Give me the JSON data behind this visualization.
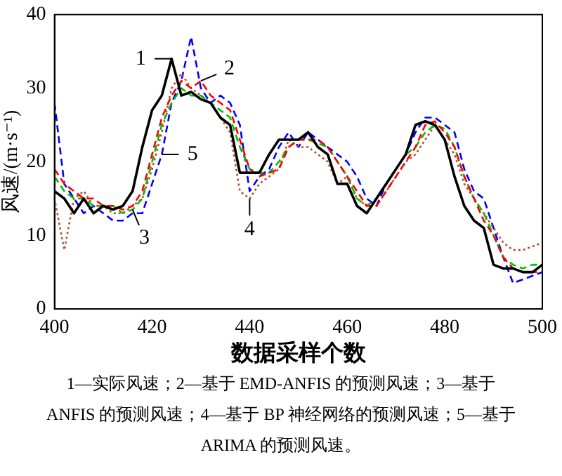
{
  "chart_data": {
    "type": "line",
    "xlabel": "数据采样个数",
    "ylabel": "风速/(m·s⁻¹)",
    "x": [
      400,
      402,
      404,
      406,
      408,
      410,
      412,
      414,
      416,
      418,
      420,
      422,
      424,
      426,
      428,
      430,
      432,
      434,
      436,
      438,
      440,
      442,
      444,
      446,
      448,
      450,
      452,
      454,
      456,
      458,
      460,
      462,
      464,
      466,
      468,
      470,
      472,
      474,
      476,
      478,
      480,
      482,
      484,
      486,
      488,
      490,
      492,
      494,
      496,
      498,
      500
    ],
    "xlim": [
      400,
      500
    ],
    "xticks": [
      400,
      420,
      440,
      460,
      480,
      500
    ],
    "ylim": [
      0,
      40
    ],
    "yticks": [
      0,
      10,
      20,
      30,
      40
    ],
    "grid": false,
    "legend": false,
    "marker": "none",
    "series": [
      {
        "color": "#000000",
        "line_style": "solid",
        "values": [
          16,
          15,
          13,
          15,
          13,
          14,
          13.5,
          14,
          16,
          22,
          27,
          29,
          34,
          29,
          29.5,
          28.5,
          28,
          26,
          25,
          18.5,
          18.5,
          18.5,
          21,
          23,
          23,
          23,
          24,
          22,
          21,
          17,
          17,
          14,
          13,
          15,
          17,
          19,
          21,
          25,
          25.5,
          25,
          23,
          18,
          14,
          12,
          11,
          6,
          5.5,
          5.5,
          5,
          5,
          6
        ]
      },
      {
        "color": "#ff0000",
        "line_style": "dashed",
        "values": [
          19,
          17,
          16,
          15,
          15,
          14,
          14,
          13.5,
          14,
          16,
          21,
          26,
          29,
          31,
          30,
          31,
          29,
          28,
          27,
          23,
          19,
          18,
          18.5,
          19,
          22,
          23,
          23,
          23,
          22,
          20,
          18,
          16,
          14,
          14,
          16,
          18,
          20,
          22,
          25,
          25.5,
          24,
          22,
          18,
          15,
          12,
          10,
          7,
          5.5,
          5,
          5,
          5
        ]
      },
      {
        "color": "#00c000",
        "line_style": "dashed",
        "values": [
          18,
          16,
          15,
          15,
          14,
          14,
          14,
          13,
          13.5,
          15,
          20,
          25,
          28,
          30,
          29,
          29,
          28,
          27,
          26,
          22,
          19,
          18.5,
          18.5,
          20,
          22,
          23,
          23,
          22.5,
          22,
          20,
          18,
          15,
          14,
          15,
          17,
          19,
          21,
          22,
          24,
          25,
          24.5,
          22,
          18,
          15,
          13,
          10,
          7,
          6,
          5.5,
          6,
          6
        ]
      },
      {
        "color": "#b05030",
        "line_style": "dotted",
        "values": [
          15,
          8,
          15,
          16,
          14,
          14,
          13,
          13,
          14,
          15,
          19,
          24,
          30,
          32,
          30,
          29,
          28,
          26,
          24,
          16,
          15,
          17,
          18,
          19,
          23,
          22,
          22,
          21,
          20,
          17,
          18,
          15,
          14,
          14,
          16,
          18,
          20,
          21,
          23,
          25,
          23,
          21,
          17,
          15,
          13,
          11,
          9,
          8,
          8,
          8.5,
          9
        ]
      },
      {
        "color": "#0000ff",
        "line_style": "dashed",
        "values": [
          28,
          17,
          15,
          13,
          14,
          13,
          12,
          12,
          13,
          13,
          17,
          21,
          28,
          31,
          37,
          30,
          28,
          29,
          28,
          25,
          16,
          18,
          19,
          22,
          24,
          22,
          24,
          23,
          22,
          21,
          20,
          18,
          15,
          14,
          17,
          19,
          21,
          24,
          26,
          26,
          25,
          24,
          19,
          16,
          15,
          11,
          7,
          3.5,
          4,
          4.5,
          5
        ]
      }
    ],
    "annotations": [
      {
        "text": "1",
        "x": 424,
        "y": 34
      },
      {
        "text": "2",
        "x": 430,
        "y": 31
      },
      {
        "text": "3",
        "x": 416,
        "y": 13.5
      },
      {
        "text": "4",
        "x": 440,
        "y": 15
      },
      {
        "text": "5",
        "x": 422,
        "y": 21
      },
      "1—实际风速；2—基于 EMD-ANFIS 的预测风速；3—基于 ANFIS 的预测风速；4—基于 BP 神经网络的预测风速；5—基于 ARIMA 的预测风速。"
    ]
  }
}
